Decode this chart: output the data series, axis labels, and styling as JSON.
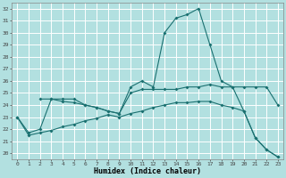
{
  "xlabel": "Humidex (Indice chaleur)",
  "bg_color": "#b2e0e0",
  "grid_color": "#ffffff",
  "line_color": "#1a7070",
  "xlim": [
    -0.5,
    23.5
  ],
  "ylim": [
    19.5,
    32.5
  ],
  "yticks": [
    20,
    21,
    22,
    23,
    24,
    25,
    26,
    27,
    28,
    29,
    30,
    31,
    32
  ],
  "xticks": [
    0,
    1,
    2,
    3,
    4,
    5,
    6,
    7,
    8,
    9,
    10,
    11,
    12,
    13,
    14,
    15,
    16,
    17,
    18,
    19,
    20,
    21,
    22,
    23
  ],
  "line1_x": [
    0,
    1,
    2,
    3,
    4,
    5,
    6,
    7,
    8,
    9,
    10,
    11,
    12,
    13,
    14,
    15,
    16,
    17,
    18,
    19,
    20,
    21,
    22,
    23
  ],
  "line1_y": [
    23.0,
    21.7,
    22.0,
    24.5,
    24.5,
    24.5,
    24.0,
    23.8,
    23.5,
    23.3,
    25.5,
    26.0,
    25.5,
    30.0,
    31.2,
    31.5,
    32.0,
    29.0,
    26.0,
    25.5,
    23.5,
    21.3,
    20.3,
    19.7
  ],
  "line2_x": [
    2,
    3,
    4,
    5,
    6,
    7,
    8,
    9,
    10,
    11,
    12,
    13,
    14,
    15,
    16,
    17,
    18,
    19,
    20,
    21,
    22,
    23
  ],
  "line2_y": [
    24.5,
    24.5,
    24.3,
    24.2,
    24.0,
    23.8,
    23.5,
    23.3,
    25.0,
    25.3,
    25.3,
    25.3,
    25.3,
    25.5,
    25.5,
    25.7,
    25.5,
    25.5,
    25.5,
    25.5,
    25.5,
    24.0
  ],
  "line3_x": [
    0,
    1,
    2,
    3,
    4,
    5,
    6,
    7,
    8,
    9,
    10,
    11,
    12,
    13,
    14,
    15,
    16,
    17,
    18,
    19,
    20,
    21,
    22,
    23
  ],
  "line3_y": [
    23.0,
    21.5,
    21.7,
    21.9,
    22.2,
    22.4,
    22.7,
    22.9,
    23.2,
    23.0,
    23.3,
    23.5,
    23.8,
    24.0,
    24.2,
    24.2,
    24.3,
    24.3,
    24.0,
    23.8,
    23.5,
    21.3,
    20.3,
    19.7
  ]
}
